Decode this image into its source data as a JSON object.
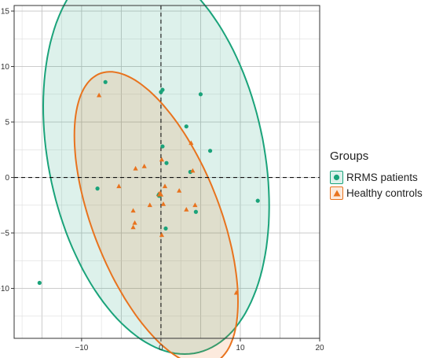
{
  "chart_data": {
    "type": "scatter",
    "title": "",
    "xlabel": "",
    "ylabel": "",
    "xlim": [
      -18.5,
      20
    ],
    "ylim": [
      -14.5,
      15.5
    ],
    "x_ticks": [
      -10,
      0,
      10,
      20
    ],
    "y_ticks": [
      -10,
      -5,
      0,
      5,
      10,
      15
    ],
    "grid": true,
    "reference_lines": {
      "x": 0,
      "y": 0,
      "style": "dashed"
    },
    "legend": {
      "title": "Groups",
      "placement": "right"
    },
    "series": [
      {
        "name": "RRMS patients",
        "marker": "circle",
        "color": "#1aa37a",
        "fill": "rgba(26,163,122,0.15)",
        "points": [
          [
            -7,
            8.6
          ],
          [
            0,
            7.7
          ],
          [
            5,
            7.5
          ],
          [
            0.2,
            7.9
          ],
          [
            3.2,
            4.6
          ],
          [
            0.2,
            2.8
          ],
          [
            6.2,
            2.4
          ],
          [
            0.7,
            1.3
          ],
          [
            3.7,
            0.5
          ],
          [
            -8,
            -1
          ],
          [
            -0.2,
            -1.6
          ],
          [
            12.2,
            -2.1
          ],
          [
            4.4,
            -3.1
          ],
          [
            0.6,
            -4.6
          ],
          [
            -15.3,
            -9.5
          ]
        ],
        "ellipse": {
          "center": [
            -0.6,
            1.9
          ],
          "semi_major": 18.6,
          "semi_minor": 13.2,
          "rotation_deg": -66
        }
      },
      {
        "name": "Healthy controls",
        "marker": "triangle",
        "color": "#e8731e",
        "fill": "rgba(232,115,30,0.15)",
        "points": [
          [
            -7.8,
            7.4
          ],
          [
            3.8,
            3.1
          ],
          [
            -2.1,
            1.0
          ],
          [
            0.1,
            1.6
          ],
          [
            -3.2,
            0.8
          ],
          [
            4.0,
            0.6
          ],
          [
            -5.3,
            -0.8
          ],
          [
            0.5,
            -0.8
          ],
          [
            2.3,
            -1.2
          ],
          [
            -1.4,
            -2.5
          ],
          [
            -0.3,
            -1.5
          ],
          [
            0.3,
            -2.4
          ],
          [
            -3.5,
            -3.0
          ],
          [
            3.2,
            -2.9
          ],
          [
            4.3,
            -2.5
          ],
          [
            -3.3,
            -4.1
          ],
          [
            -3.5,
            -4.5
          ],
          [
            0.1,
            -5.2
          ],
          [
            9.5,
            -10.4
          ]
        ],
        "ellipse": {
          "center": [
            -0.6,
            -3.7
          ],
          "semi_major": 15.0,
          "semi_minor": 7.5,
          "rotation_deg": -57
        }
      }
    ]
  }
}
